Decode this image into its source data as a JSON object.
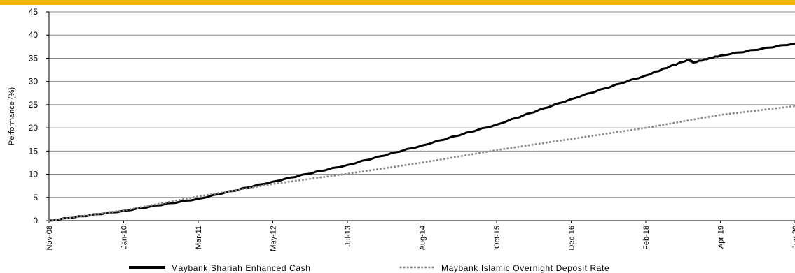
{
  "chart_data": {
    "type": "line",
    "ylabel": "Performance (%)",
    "xlabel": "",
    "ylim": [
      0,
      45
    ],
    "yticks": [
      0,
      5,
      10,
      15,
      20,
      25,
      30,
      35,
      40,
      45
    ],
    "xticks": [
      "Nov-08",
      "Jan-10",
      "Mar-11",
      "May-12",
      "Jul-13",
      "Aug-14",
      "Oct-15",
      "Dec-16",
      "Feb-18",
      "Apr-19",
      "Jun-20"
    ],
    "grid": true,
    "legend_position": "bottom",
    "series": [
      {
        "name": "Maybank Shariah Enhanced Cash",
        "style": "solid",
        "color": "#000000",
        "x": [
          "Nov-08",
          "Jan-10",
          "Mar-11",
          "May-12",
          "Jul-13",
          "Aug-14",
          "Oct-15",
          "Dec-16",
          "Feb-18",
          "Oct-18",
          "Nov-18",
          "Apr-19",
          "Jun-20"
        ],
        "values": [
          0,
          2.1,
          4.7,
          8.4,
          12.0,
          16.2,
          20.7,
          26.2,
          31.3,
          34.7,
          34.1,
          35.6,
          38.2
        ]
      },
      {
        "name": "Maybank Islamic Overnight Deposit Rate",
        "style": "dotted",
        "color": "#8c8c8c",
        "x": [
          "Nov-08",
          "Jan-10",
          "Mar-11",
          "May-12",
          "Jul-13",
          "Aug-14",
          "Oct-15",
          "Dec-16",
          "Feb-18",
          "Apr-19",
          "Jun-20"
        ],
        "values": [
          0,
          2.2,
          5.2,
          7.9,
          10.1,
          12.5,
          15.2,
          17.6,
          20.0,
          22.8,
          24.7
        ]
      }
    ]
  },
  "colors": {
    "top_band": "#f5b800",
    "grid": "#8c8c8c",
    "axis": "#000000"
  }
}
